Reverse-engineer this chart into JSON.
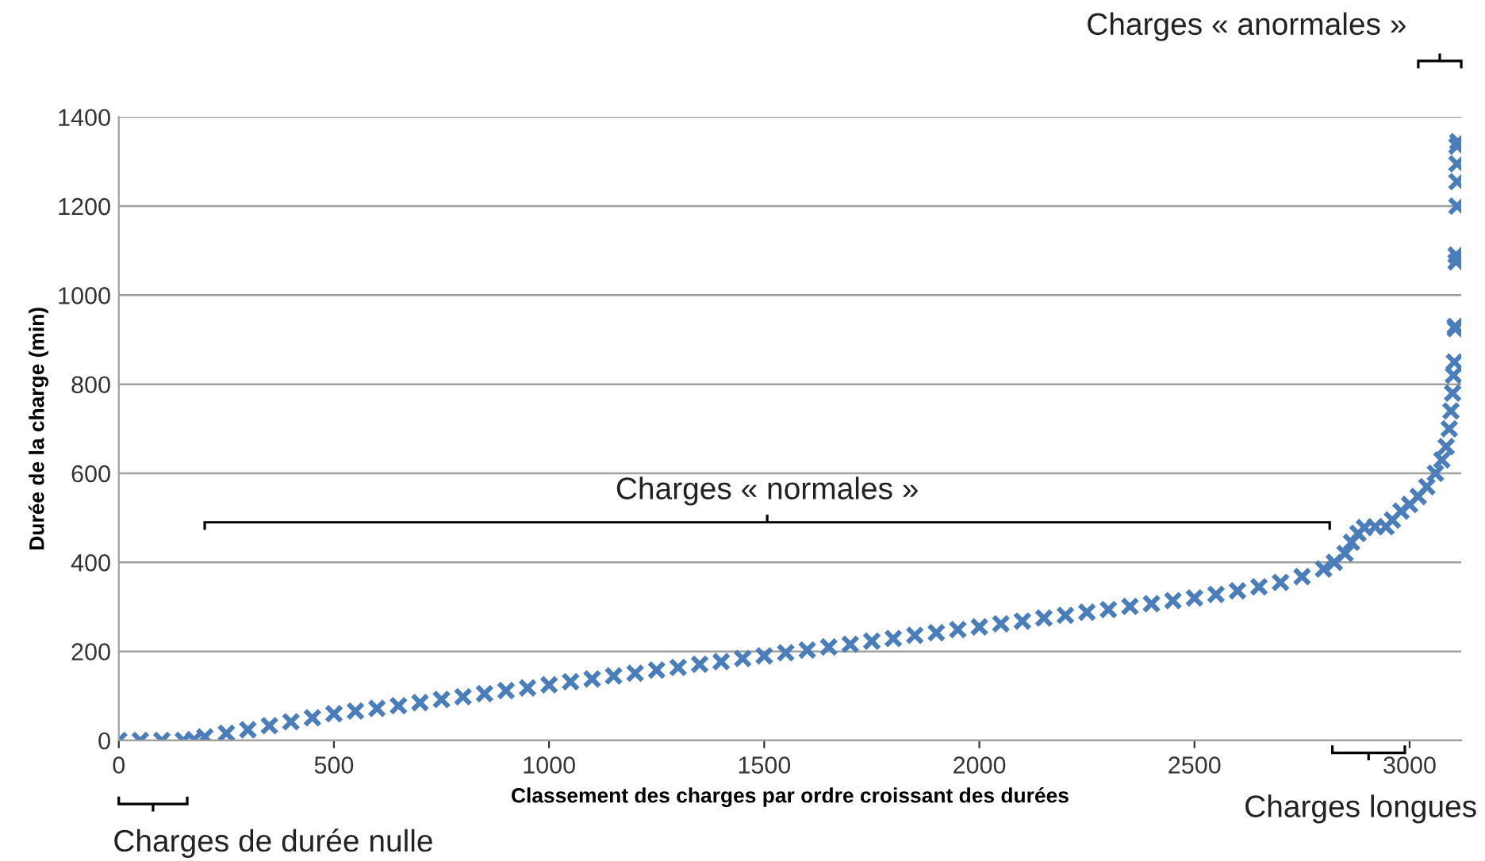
{
  "chart_data": {
    "type": "scatter",
    "xlabel": "Classement des charges par ordre croissant des durées",
    "ylabel": "Durée de la charge (min)",
    "annotations": [
      "Charges de durée nulle",
      "Charges « normales »",
      "Charges longues",
      "Charges « anormales »"
    ],
    "x": [
      0,
      50,
      100,
      150,
      175,
      200,
      250,
      300,
      350,
      400,
      450,
      500,
      550,
      600,
      650,
      700,
      750,
      800,
      850,
      900,
      950,
      1000,
      1050,
      1100,
      1150,
      1200,
      1250,
      1300,
      1350,
      1400,
      1450,
      1500,
      1550,
      1600,
      1650,
      1700,
      1750,
      1800,
      1850,
      1900,
      1950,
      2000,
      2050,
      2100,
      2150,
      2200,
      2250,
      2300,
      2350,
      2400,
      2450,
      2500,
      2550,
      2600,
      2650,
      2700,
      2750,
      2800,
      2825,
      2850,
      2865,
      2880,
      2895,
      2920,
      2945,
      2960,
      2980,
      3000,
      3020,
      3040,
      3060,
      3075,
      3085,
      3092,
      3096,
      3100,
      3102,
      3104,
      3106,
      3106,
      3108,
      3108,
      3110,
      3110,
      3110,
      3110,
      3112
    ],
    "series": [
      {
        "color": "#4a7ebb",
        "values": [
          0,
          0,
          0,
          0,
          2,
          8,
          16,
          24,
          33,
          42,
          51,
          60,
          66,
          72,
          78,
          85,
          92,
          98,
          105,
          112,
          118,
          125,
          132,
          138,
          145,
          151,
          158,
          164,
          171,
          177,
          184,
          190,
          197,
          203,
          210,
          216,
          223,
          229,
          236,
          242,
          249,
          255,
          262,
          268,
          275,
          281,
          288,
          294,
          301,
          307,
          314,
          320,
          328,
          336,
          345,
          355,
          368,
          385,
          400,
          420,
          445,
          465,
          478,
          480,
          480,
          495,
          515,
          530,
          548,
          570,
          600,
          630,
          660,
          700,
          740,
          780,
          820,
          850,
          930,
          925,
          1075,
          1090,
          1200,
          1255,
          1295,
          1335,
          1345
        ]
      }
    ],
    "xlim": [
      0,
      3120
    ],
    "xticks": [
      0,
      500,
      1000,
      1500,
      2000,
      2500,
      3000
    ],
    "ylim": [
      0,
      1400
    ],
    "yticks": [
      0,
      200,
      400,
      600,
      800,
      1000,
      1200,
      1400
    ],
    "grid": "y",
    "marker": "cross",
    "legend": false
  }
}
